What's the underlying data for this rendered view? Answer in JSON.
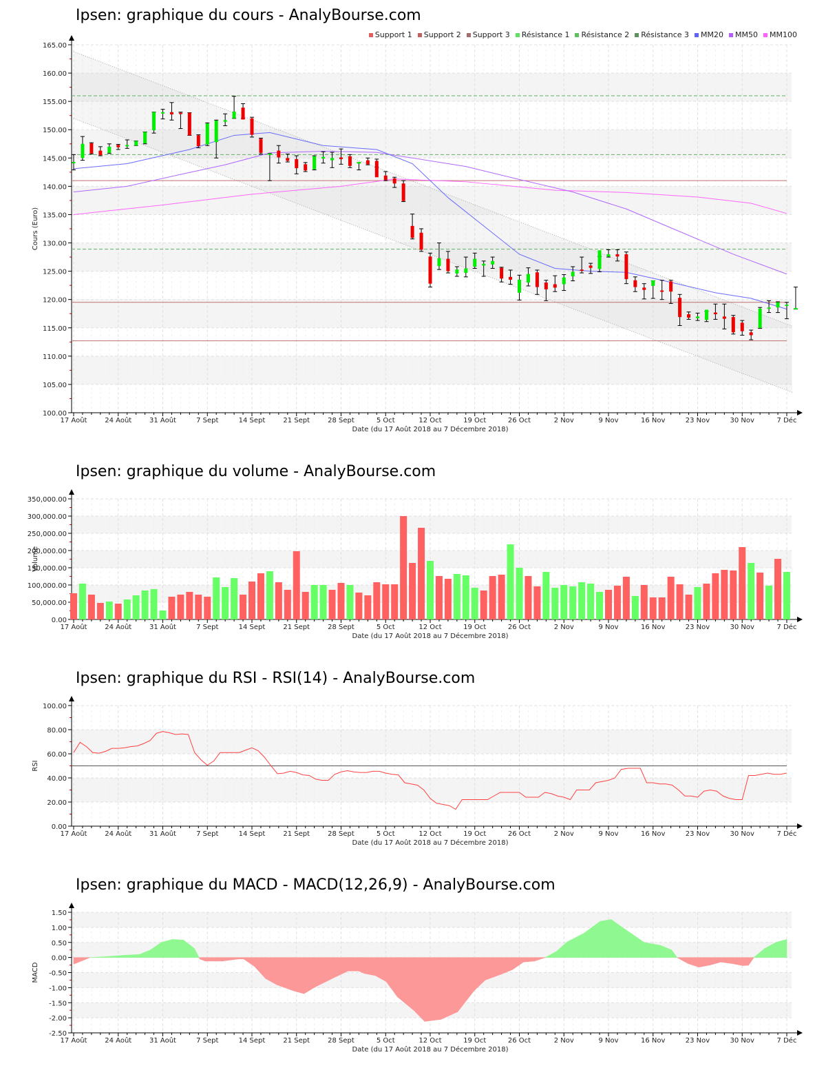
{
  "titles": {
    "price": "Ipsen: graphique du cours - AnalyBourse.com",
    "volume": "Ipsen: graphique du volume - AnalyBourse.com",
    "rsi": "Ipsen: graphique du RSI - RSI(14) - AnalyBourse.com",
    "macd": "Ipsen: graphique du MACD - MACD(12,26,9) - AnalyBourse.com"
  },
  "xlabel": "Date (du 17 Août 2018 au 7 Décembre 2018)",
  "x_ticks": [
    "17 Août",
    "24 Août",
    "31 Août",
    "7 Sept",
    "14 Sept",
    "21 Sept",
    "28 Sept",
    "5 Oct",
    "12 Oct",
    "19 Oct",
    "26 Oct",
    "2 Nov",
    "9 Nov",
    "16 Nov",
    "23 Nov",
    "30 Nov",
    "7 Déc"
  ],
  "legend": [
    {
      "label": "Support 1",
      "color": "#e06060"
    },
    {
      "label": "Support 2",
      "color": "#c06060"
    },
    {
      "label": "Support 3",
      "color": "#a07070"
    },
    {
      "label": "Résistance 1",
      "color": "#60e060"
    },
    {
      "label": "Résistance 2",
      "color": "#60c060"
    },
    {
      "label": "Résistance 3",
      "color": "#609060"
    },
    {
      "label": "MM20",
      "color": "#6060ff"
    },
    {
      "label": "MM50",
      "color": "#b060ff"
    },
    {
      "label": "MM100",
      "color": "#ff60ff"
    }
  ],
  "colors": {
    "up": "#00ee00",
    "down": "#ee0000",
    "vol_up": "#66ff66",
    "vol_down": "#ff6060",
    "rsi": "#ff4040",
    "macd_pos": "#90f890",
    "macd_neg": "#fc9898"
  },
  "chart_data": [
    {
      "type": "candlestick",
      "title": "Ipsen: graphique du cours - AnalyBourse.com",
      "ylabel": "Cours (Euro)",
      "xlabel": "Date (du 17 Août 2018 au 7 Décembre 2018)",
      "ylim": [
        100,
        165
      ],
      "yticks": [
        "100.00",
        "105.00",
        "110.00",
        "115.00",
        "120.00",
        "125.00",
        "130.00",
        "135.00",
        "140.00",
        "145.00",
        "150.00",
        "155.00",
        "160.00",
        "165.00"
      ],
      "supports": [
        141.0,
        119.5,
        112.7
      ],
      "resistances": [
        156.0,
        145.6,
        128.9
      ],
      "ohlc": [
        [
          144.2,
          145.6,
          142.9,
          144.3
        ],
        [
          145.0,
          148.8,
          144.6,
          147.5
        ],
        [
          147.6,
          147.7,
          145.7,
          145.8
        ],
        [
          146.3,
          147.0,
          145.4,
          145.5
        ],
        [
          145.9,
          147.5,
          145.8,
          147.0
        ],
        [
          147.3,
          147.4,
          146.5,
          146.9
        ],
        [
          147.1,
          148.2,
          146.7,
          147.3
        ],
        [
          147.2,
          148.0,
          147.2,
          148.0
        ],
        [
          147.6,
          149.6,
          147.5,
          149.6
        ],
        [
          149.9,
          153.1,
          149.4,
          153.1
        ],
        [
          153.0,
          153.6,
          151.9,
          153.1
        ],
        [
          153.1,
          154.8,
          151.7,
          152.7
        ],
        [
          153.0,
          153.1,
          150.2,
          152.8
        ],
        [
          153.0,
          153.0,
          149.0,
          149.0
        ],
        [
          149.0,
          149.1,
          146.8,
          147.1
        ],
        [
          147.4,
          151.2,
          147.2,
          151.1
        ],
        [
          147.8,
          151.7,
          145.0,
          151.6
        ],
        [
          151.4,
          152.8,
          150.7,
          151.7
        ],
        [
          152.0,
          155.9,
          152.0,
          153.2
        ],
        [
          153.9,
          154.6,
          152.0,
          151.8
        ],
        [
          152.0,
          152.2,
          148.7,
          149.1
        ],
        [
          148.4,
          148.5,
          145.7,
          145.9
        ],
        [
          145.8,
          145.8,
          141.0,
          145.8
        ],
        [
          146.3,
          147.2,
          144.1,
          145.1
        ],
        [
          145.0,
          145.7,
          144.3,
          144.5
        ],
        [
          144.8,
          145.4,
          142.2,
          143.2
        ],
        [
          143.9,
          144.2,
          142.6,
          142.8
        ],
        [
          143.0,
          145.4,
          142.9,
          145.3
        ],
        [
          144.9,
          146.1,
          144.1,
          145.2
        ],
        [
          144.6,
          146.0,
          143.3,
          145.0
        ],
        [
          145.1,
          146.6,
          143.9,
          144.8
        ],
        [
          145.3,
          145.6,
          143.3,
          143.6
        ],
        [
          144.0,
          144.2,
          142.9,
          144.3
        ],
        [
          144.6,
          145.0,
          143.8,
          143.9
        ],
        [
          144.5,
          144.8,
          143.4,
          141.6
        ],
        [
          141.9,
          142.6,
          141.0,
          141.1
        ],
        [
          141.4,
          141.6,
          139.8,
          140.5
        ],
        [
          140.5,
          141.0,
          137.3,
          137.4
        ],
        [
          133.0,
          135.1,
          130.7,
          130.9
        ],
        [
          131.8,
          132.5,
          128.5,
          128.8
        ],
        [
          127.6,
          128.2,
          122.2,
          122.8
        ],
        [
          125.9,
          130.0,
          125.3,
          127.3
        ],
        [
          127.2,
          128.5,
          124.7,
          125.0
        ],
        [
          124.6,
          125.8,
          124.1,
          125.3
        ],
        [
          124.7,
          127.5,
          124.0,
          125.5
        ],
        [
          125.8,
          128.2,
          125.5,
          127.2
        ],
        [
          126.0,
          126.8,
          124.1,
          126.3
        ],
        [
          126.2,
          127.5,
          125.5,
          126.8
        ],
        [
          125.6,
          125.7,
          123.1,
          123.7
        ],
        [
          124.0,
          125.2,
          122.7,
          123.5
        ],
        [
          121.2,
          124.3,
          119.9,
          123.5
        ],
        [
          123.0,
          125.6,
          122.4,
          124.5
        ],
        [
          124.8,
          125.2,
          120.9,
          122.2
        ],
        [
          123.0,
          123.4,
          119.8,
          121.8
        ],
        [
          122.7,
          124.2,
          121.4,
          122.1
        ],
        [
          122.7,
          124.4,
          121.6,
          123.9
        ],
        [
          124.1,
          125.8,
          123.3,
          124.9
        ],
        [
          125.3,
          127.5,
          124.7,
          125.2
        ],
        [
          126.0,
          126.4,
          124.6,
          125.6
        ],
        [
          125.4,
          127.6,
          124.9,
          128.7
        ],
        [
          127.6,
          128.8,
          127.5,
          128.0
        ],
        [
          128.0,
          128.8,
          126.8,
          127.6
        ],
        [
          128.0,
          128.4,
          122.8,
          123.6
        ],
        [
          123.4,
          124.0,
          121.4,
          122.2
        ],
        [
          122.1,
          122.8,
          120.1,
          121.7
        ],
        [
          122.4,
          123.3,
          120.2,
          123.4
        ],
        [
          121.6,
          123.4,
          120.0,
          121.5
        ],
        [
          123.2,
          123.4,
          119.3,
          121.4
        ],
        [
          120.3,
          120.9,
          115.4,
          116.9
        ],
        [
          117.4,
          117.8,
          116.5,
          116.8
        ],
        [
          116.7,
          117.6,
          116.3,
          117.0
        ],
        [
          116.4,
          117.9,
          116.1,
          118.2
        ],
        [
          117.7,
          119.2,
          116.5,
          117.4
        ],
        [
          117.0,
          119.2,
          114.8,
          116.6
        ],
        [
          116.9,
          117.2,
          113.9,
          114.2
        ],
        [
          115.9,
          116.3,
          113.7,
          114.4
        ],
        [
          114.2,
          114.6,
          112.9,
          113.7
        ],
        [
          115.0,
          118.6,
          114.9,
          118.4
        ],
        [
          118.6,
          119.8,
          117.7,
          118.6
        ],
        [
          118.6,
          119.6,
          117.7,
          119.5
        ],
        [
          118.9,
          119.5,
          116.6,
          119.1
        ],
        [
          118.3,
          122.2,
          118.3,
          118.5
        ]
      ],
      "mm20": [
        [
          0,
          143.1
        ],
        [
          6,
          144.0
        ],
        [
          13,
          146.5
        ],
        [
          18,
          149.0
        ],
        [
          22,
          149.5
        ],
        [
          28,
          147.2
        ],
        [
          34,
          146.5
        ],
        [
          38,
          144.0
        ],
        [
          42,
          138.0
        ],
        [
          46,
          133.0
        ],
        [
          50,
          128.0
        ],
        [
          54,
          125.5
        ],
        [
          58,
          125.0
        ],
        [
          62,
          124.8
        ],
        [
          66,
          123.4
        ],
        [
          72,
          121.2
        ],
        [
          76,
          120.2
        ],
        [
          80,
          118.3
        ]
      ],
      "mm50": [
        [
          0,
          139.0
        ],
        [
          6,
          140.0
        ],
        [
          12,
          142.1
        ],
        [
          17,
          143.8
        ],
        [
          22,
          145.9
        ],
        [
          28,
          146.2
        ],
        [
          34,
          146.0
        ],
        [
          38,
          145.0
        ],
        [
          44,
          143.5
        ],
        [
          50,
          141.2
        ],
        [
          56,
          139.0
        ],
        [
          62,
          136.0
        ],
        [
          68,
          132.0
        ],
        [
          74,
          128.0
        ],
        [
          80,
          124.5
        ]
      ],
      "mm100": [
        [
          0,
          135.0
        ],
        [
          10,
          136.7
        ],
        [
          20,
          138.6
        ],
        [
          30,
          140.0
        ],
        [
          36,
          141.3
        ],
        [
          44,
          140.8
        ],
        [
          54,
          139.3
        ],
        [
          62,
          138.9
        ],
        [
          70,
          138.1
        ],
        [
          76,
          137.0
        ],
        [
          80,
          135.2
        ]
      ],
      "channel_upper": [
        [
          0,
          163.8
        ],
        [
          80,
          115.3
        ]
      ],
      "channel_lower": [
        [
          0,
          152.0
        ],
        [
          80,
          103.6
        ]
      ]
    },
    {
      "type": "bar",
      "title": "Ipsen: graphique du volume - AnalyBourse.com",
      "ylabel": "Volume",
      "ylim": [
        0,
        350000
      ],
      "yticks": [
        "0.00",
        "50,000.00",
        "100,000.00",
        "150,000.00",
        "200,000.00",
        "250,000.00",
        "300,000.00",
        "350,000.00"
      ],
      "values": [
        76000,
        104000,
        72000,
        48000,
        52000,
        46000,
        58000,
        70000,
        84000,
        88000,
        26000,
        66000,
        72000,
        80000,
        72000,
        66000,
        122000,
        94000,
        120000,
        72000,
        110000,
        134000,
        140000,
        108000,
        86000,
        198000,
        80000,
        100000,
        100000,
        86000,
        106000,
        100000,
        78000,
        70000,
        108000,
        102000,
        102000,
        300000,
        164000,
        266000,
        170000,
        126000,
        118000,
        132000,
        128000,
        92000,
        84000,
        126000,
        130000,
        218000,
        150000,
        126000,
        96000,
        138000,
        92000,
        100000,
        96000,
        108000,
        104000,
        80000,
        86000,
        98000,
        124000,
        68000,
        100000,
        64000,
        64000,
        124000,
        102000,
        72000,
        94000,
        104000,
        134000,
        144000,
        142000,
        210000,
        164000,
        136000,
        98000,
        176000,
        138000
      ],
      "up": [
        0,
        1,
        0,
        0,
        1,
        0,
        1,
        1,
        1,
        1,
        1,
        0,
        0,
        0,
        0,
        0,
        1,
        1,
        1,
        0,
        0,
        0,
        1,
        0,
        0,
        0,
        0,
        1,
        1,
        0,
        0,
        1,
        0,
        0,
        0,
        0,
        0,
        0,
        0,
        0,
        1,
        0,
        0,
        1,
        1,
        1,
        0,
        0,
        0,
        1,
        1,
        0,
        0,
        1,
        1,
        1,
        1,
        1,
        1,
        1,
        0,
        0,
        0,
        1,
        0,
        0,
        0,
        0,
        0,
        0,
        1,
        0,
        0,
        0,
        0,
        0,
        1,
        0,
        1,
        0,
        1
      ]
    },
    {
      "type": "line",
      "title": "Ipsen: graphique du RSI - RSI(14) - AnalyBourse.com",
      "ylabel": "RSI",
      "ylim": [
        0,
        100
      ],
      "yticks": [
        "0.00",
        "20.00",
        "40.00",
        "60.00",
        "80.00",
        "100.00"
      ],
      "reference": 50,
      "values": [
        61,
        69.5,
        66,
        61,
        60.5,
        62,
        64.5,
        64.5,
        65,
        66,
        66.5,
        68.5,
        71,
        77,
        78.5,
        77.5,
        76,
        76.5,
        76,
        61,
        55,
        50.5,
        54,
        61,
        61,
        61,
        61,
        63,
        65,
        62.5,
        57,
        50,
        43.5,
        44,
        45.5,
        44.5,
        42.5,
        42,
        39,
        38,
        38,
        43,
        45,
        46,
        45,
        44.5,
        44.5,
        45.5,
        45.5,
        44,
        43,
        42.5,
        36,
        35,
        34,
        30,
        23,
        19,
        18,
        17,
        14,
        22,
        22,
        22,
        22,
        22,
        25,
        28,
        28,
        28,
        28,
        24,
        24,
        24,
        28,
        27,
        25,
        24,
        22,
        30,
        30,
        30,
        36,
        37,
        38,
        40,
        47,
        48,
        48,
        48,
        36,
        36,
        35,
        35,
        34,
        30,
        25,
        25,
        24,
        29,
        30,
        29,
        25,
        23,
        22,
        22,
        42,
        42,
        43,
        44,
        43,
        43,
        44
      ]
    },
    {
      "type": "area",
      "title": "Ipsen: graphique du MACD - MACD(12,26,9) - AnalyBourse.com",
      "ylabel": "MACD",
      "ylim": [
        -2.5,
        1.5
      ],
      "yticks": [
        "-2.50",
        "-2.00",
        "-1.50",
        "-1.00",
        "-0.50",
        "0.00",
        "0.50",
        "1.00",
        "1.50"
      ],
      "points": [
        [
          0,
          -0.22
        ],
        [
          3,
          0.0
        ],
        [
          6,
          0.03
        ],
        [
          9,
          0.07
        ],
        [
          12,
          0.1
        ],
        [
          14,
          0.25
        ],
        [
          16,
          0.5
        ],
        [
          18,
          0.6
        ],
        [
          20,
          0.58
        ],
        [
          22,
          0.3
        ],
        [
          23,
          -0.05
        ],
        [
          24,
          -0.12
        ],
        [
          27,
          -0.12
        ],
        [
          30,
          -0.05
        ],
        [
          31,
          -0.05
        ],
        [
          33,
          -0.3
        ],
        [
          35,
          -0.7
        ],
        [
          37,
          -0.9
        ],
        [
          40,
          -1.1
        ],
        [
          42,
          -1.2
        ],
        [
          44,
          -0.98
        ],
        [
          46,
          -0.8
        ],
        [
          48,
          -0.62
        ],
        [
          50,
          -0.45
        ],
        [
          52,
          -0.45
        ],
        [
          53,
          -0.53
        ],
        [
          55,
          -0.6
        ],
        [
          57,
          -0.8
        ],
        [
          59,
          -1.3
        ],
        [
          62,
          -1.75
        ],
        [
          64,
          -2.12
        ],
        [
          67,
          -2.05
        ],
        [
          70,
          -1.8
        ],
        [
          73,
          -1.1
        ],
        [
          75,
          -0.75
        ],
        [
          78,
          -0.55
        ],
        [
          80,
          -0.4
        ],
        [
          82,
          -0.15
        ],
        [
          84,
          -0.12
        ],
        [
          86,
          0.0
        ],
        [
          88,
          0.2
        ],
        [
          90,
          0.52
        ],
        [
          93,
          0.8
        ],
        [
          96,
          1.2
        ],
        [
          98,
          1.26
        ],
        [
          100,
          1.0
        ],
        [
          102,
          0.75
        ],
        [
          104,
          0.5
        ],
        [
          107,
          0.4
        ],
        [
          109,
          0.25
        ],
        [
          110,
          0.0
        ],
        [
          112,
          -0.2
        ],
        [
          114,
          -0.32
        ],
        [
          116,
          -0.25
        ],
        [
          118,
          -0.15
        ],
        [
          120,
          -0.2
        ],
        [
          122,
          -0.27
        ],
        [
          123,
          -0.26
        ],
        [
          124,
          0.0
        ],
        [
          126,
          0.3
        ],
        [
          128,
          0.5
        ],
        [
          130,
          0.6
        ]
      ],
      "x_span": 130
    }
  ]
}
